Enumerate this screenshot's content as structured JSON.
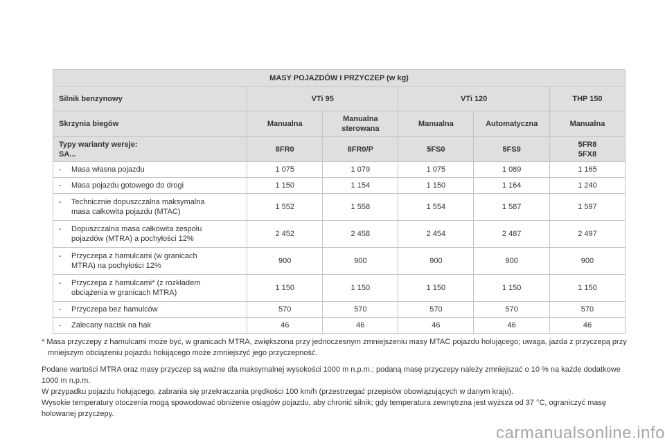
{
  "table": {
    "title": "MASY POJAZDÓW I PRZYCZEP (w kg)",
    "engine_label": "Silnik benzynowy",
    "engines": [
      "VTi 95",
      "VTi 120",
      "THP 150"
    ],
    "gearbox_label": "Skrzynia biegów",
    "gearboxes": [
      "Manualna",
      "Manualna sterowana",
      "Manualna",
      "Automatyczna",
      "Manualna"
    ],
    "types_label_1": "Typy warianty wersje:",
    "types_label_2": "SA...",
    "types": [
      "8FR0",
      "8FR0/P",
      "5FS0",
      "5FS9",
      "5FR8",
      "5FX8"
    ],
    "rows": [
      {
        "l1": "Masa własna pojazdu",
        "l2": "",
        "v": [
          "1 075",
          "1 079",
          "1 075",
          "1 089",
          "1 165"
        ]
      },
      {
        "l1": "Masa pojazdu gotowego do drogi",
        "l2": "",
        "v": [
          "1 150",
          "1 154",
          "1 150",
          "1 164",
          "1 240"
        ]
      },
      {
        "l1": "Technicznie dopuszczalna maksymalna",
        "l2": "masa całkowita pojazdu (MTAC)",
        "v": [
          "1 552",
          "1 558",
          "1 554",
          "1 587",
          "1 597"
        ]
      },
      {
        "l1": "Dopuszczalna masa całkowita zespołu",
        "l2": "pojazdów (MTRA) a pochyłości 12%",
        "v": [
          "2 452",
          "2 458",
          "2 454",
          "2 487",
          "2 497"
        ]
      },
      {
        "l1": "Przyczepa z hamulcami (w granicach",
        "l2": "MTRA) na pochyłości 12%",
        "v": [
          "900",
          "900",
          "900",
          "900",
          "900"
        ]
      },
      {
        "l1": "Przyczepa z hamulcami* (z rozkładem",
        "l2": "obciążenia w granicach MTRA)",
        "v": [
          "1 150",
          "1 150",
          "1 150",
          "1 150",
          "1 150"
        ]
      },
      {
        "l1": "Przyczepa bez hamulców",
        "l2": "",
        "v": [
          "570",
          "570",
          "570",
          "570",
          "570"
        ]
      },
      {
        "l1": "Zalecany nacisk na hak",
        "l2": "",
        "v": [
          "46",
          "46",
          "46",
          "46",
          "46"
        ]
      }
    ],
    "dash": "-"
  },
  "notes": {
    "footnote": "* Masa przyczepy z hamulcami może być, w granicach MTRA, zwiększona przy jednoczesnym zmniejszeniu masy MTAC pojazdu holującego; uwaga, jazda z przyczepą przy mniejszym obciążeniu pojazdu holującego może zmniejszyć jego przyczepność.",
    "p1": "Podane wartości MTRA oraz masy przyczep są ważne dla maksymalnej wysokości 1000 m n.p.m.; podaną masę przyczepy należy zmniejszać o 10 % na każde dodatkowe 1000 m n.p.m.",
    "p2": "W przypadku pojazdu holującego, zabrania się przekraczania prędkości 100 km/h (przestrzegać przepisów obowiązujących w danym kraju).",
    "p3": "Wysokie temperatury otoczenia mogą spowodować obniżenie osiągów pojazdu, aby chronić silnik; gdy temperatura zewnętrzna jest wyższa od 37 °C, ograniczyć masę holowanej przyczepy."
  },
  "watermark": "carmanualsonline.info"
}
